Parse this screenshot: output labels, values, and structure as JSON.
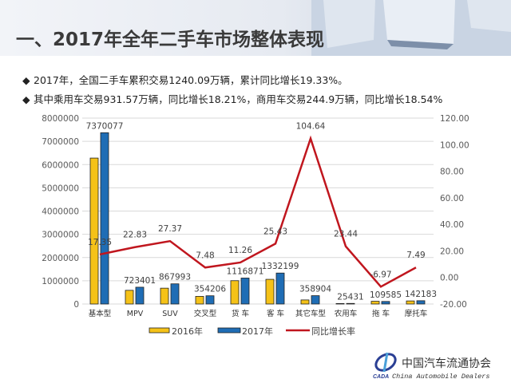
{
  "title": "一、2017年全年二手车市场整体表现",
  "bullets": [
    "2017年，全国二手车累积交易1240.09万辆，累计同比增长19.33%。",
    "其中乘用车交易931.57万辆，同比增长18.21%，商用车交易244.9万辆，同比增长18.54%"
  ],
  "bullet_icon": "diamond-icon",
  "logo": {
    "cn": "中国汽车流通协会",
    "abbr": "CADA",
    "en": "China Automobile Dealers"
  },
  "colors": {
    "series2016": "#f5c218",
    "series2017": "#1f6db5",
    "growth": "#c0161e"
  },
  "chart_data": {
    "type": "bar+line",
    "categories": [
      "基本型",
      "MPV",
      "SUV",
      "交叉型",
      "货 车",
      "客 车",
      "其它车型",
      "农用车",
      "拖 车",
      "摩托车"
    ],
    "series": [
      {
        "name": "2016年",
        "type": "bar",
        "axis": "left",
        "values": [
          6280000,
          589000,
          681500,
          329600,
          1003800,
          1062100,
          175400,
          20600,
          117800,
          132300
        ]
      },
      {
        "name": "2017年",
        "type": "bar",
        "axis": "left",
        "values": [
          7370077,
          723401,
          867993,
          354206,
          1116871,
          1332199,
          358904,
          25431,
          109585,
          142183
        ],
        "labels": [
          "7370077",
          "723401",
          "867993",
          "354206",
          "1116871",
          "1332199",
          "358904",
          "25431",
          "109585",
          "142183"
        ]
      },
      {
        "name": "同比增长率",
        "type": "line",
        "axis": "right",
        "values": [
          17.35,
          22.83,
          27.37,
          7.48,
          11.26,
          25.43,
          104.64,
          23.44,
          -6.97,
          7.49
        ],
        "labels": [
          "17.35",
          "22.83",
          "27.37",
          "7.48",
          "11.26",
          "25.43",
          "104.64",
          "23.44",
          "-6.97",
          "7.49"
        ]
      }
    ],
    "left_axis": {
      "min": 0,
      "max": 8000000,
      "ticks": [
        "0",
        "1000000",
        "2000000",
        "3000000",
        "4000000",
        "5000000",
        "6000000",
        "7000000",
        "8000000"
      ]
    },
    "right_axis": {
      "min": -20,
      "max": 120,
      "ticks": [
        "-20.00",
        "0.00",
        "20.00",
        "40.00",
        "60.00",
        "80.00",
        "100.00",
        "120.00"
      ]
    },
    "grid": true,
    "legend_position": "bottom"
  }
}
